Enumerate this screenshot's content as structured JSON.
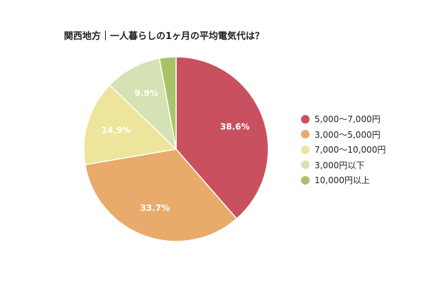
{
  "chart_data": {
    "type": "pie",
    "title": "関西地方｜一人暮らしの1ヶ月の平均電気代は？",
    "legend_position": "right",
    "slices": [
      {
        "label": "5,000〜7,000円",
        "value": 38.6,
        "display": "38.6%",
        "color": "#c9505e"
      },
      {
        "label": "3,000〜5,000円",
        "value": 33.7,
        "display": "33.7%",
        "color": "#e8ab6b"
      },
      {
        "label": "7,000〜10,000円",
        "value": 14.9,
        "display": "14.9%",
        "color": "#ede59c"
      },
      {
        "label": "3,000円以下",
        "value": 9.9,
        "display": "9.9%",
        "color": "#d5e2b3"
      },
      {
        "label": "10,000円以上",
        "value": 2.9,
        "display": "",
        "color": "#a9c468"
      }
    ]
  }
}
